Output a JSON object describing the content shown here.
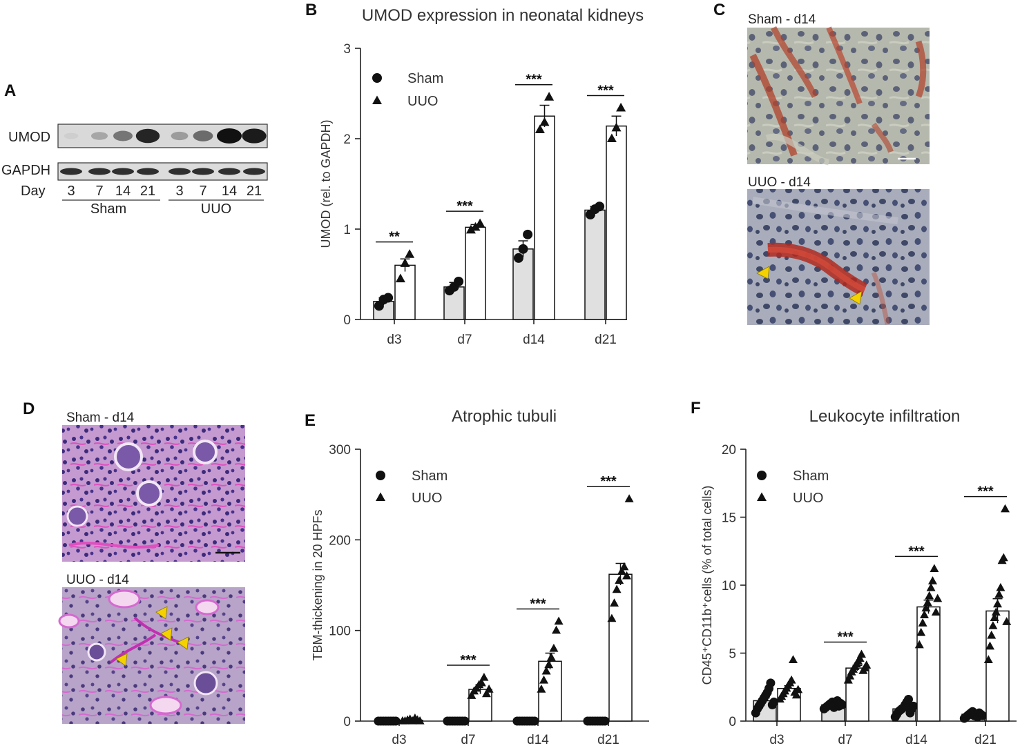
{
  "panels": {
    "A": {
      "letter": "A",
      "rows": [
        "UMOD",
        "GAPDH"
      ],
      "day_label": "Day",
      "days": [
        "3",
        "7",
        "14",
        "21",
        "3",
        "7",
        "14",
        "21"
      ],
      "groups": [
        "Sham",
        "UUO"
      ],
      "umod_band_intensity": [
        0.05,
        0.25,
        0.5,
        0.9,
        0.3,
        0.55,
        1.0,
        0.95
      ],
      "gapdh_band_intensity": [
        0.85,
        0.85,
        0.85,
        0.85,
        0.85,
        0.85,
        0.85,
        0.85
      ]
    },
    "C": {
      "letter": "C",
      "image_labels": [
        "Sham - d14",
        "UUO - d14"
      ]
    },
    "D": {
      "letter": "D",
      "image_labels": [
        "Sham - d14",
        "UUO - d14"
      ]
    }
  },
  "chart_data": [
    {
      "panel": "B",
      "type": "bar",
      "title": "UMOD expression in neonatal kidneys",
      "ylabel": "UMOD (rel. to GAPDH)",
      "xlabel": "",
      "categories": [
        "d3",
        "d7",
        "d14",
        "d21"
      ],
      "ylim": [
        0,
        3
      ],
      "yticks": [
        0,
        1,
        2,
        3
      ],
      "series": [
        {
          "name": "Sham",
          "marker": "circle",
          "color": "#e0e0e0",
          "values": [
            0.2,
            0.36,
            0.78,
            1.21
          ],
          "errors": [
            0.04,
            0.05,
            0.09,
            0.04
          ],
          "points": [
            [
              0.15,
              0.22,
              0.24
            ],
            [
              0.32,
              0.36,
              0.42
            ],
            [
              0.68,
              0.78,
              0.94
            ],
            [
              1.16,
              1.22,
              1.25
            ]
          ]
        },
        {
          "name": "UUO",
          "marker": "triangle",
          "color": "#ffffff",
          "values": [
            0.6,
            1.02,
            2.25,
            2.14
          ],
          "errors": [
            0.07,
            0.03,
            0.12,
            0.11
          ],
          "points": [
            [
              0.45,
              0.62,
              0.72
            ],
            [
              0.99,
              1.02,
              1.06
            ],
            [
              2.1,
              2.18,
              2.46
            ],
            [
              2.0,
              2.12,
              2.34
            ]
          ]
        }
      ],
      "significance": [
        "**",
        "***",
        "***",
        "***"
      ],
      "legend": "top-left"
    },
    {
      "panel": "E",
      "type": "bar",
      "title": "Atrophic tubuli",
      "ylabel": "TBM-thickening in 20 HPFs",
      "xlabel": "",
      "categories": [
        "d3",
        "d7",
        "d14",
        "d21"
      ],
      "ylim": [
        0,
        300
      ],
      "yticks": [
        0,
        100,
        200,
        300
      ],
      "series": [
        {
          "name": "Sham",
          "marker": "circle",
          "color": "#e0e0e0",
          "values": [
            0,
            0,
            0,
            0
          ],
          "errors": [
            0,
            0,
            0,
            0
          ],
          "points": [
            [
              0,
              0,
              0,
              0,
              0,
              0,
              0,
              0
            ],
            [
              0,
              0,
              0,
              0,
              0,
              0,
              0,
              0
            ],
            [
              0,
              0,
              0,
              0,
              0,
              0,
              0,
              0
            ],
            [
              0,
              0,
              0,
              0,
              0,
              0,
              0,
              0
            ]
          ]
        },
        {
          "name": "UUO",
          "marker": "triangle",
          "color": "#ffffff",
          "values": [
            1,
            35,
            66,
            162
          ],
          "errors": [
            0.5,
            5,
            9,
            12
          ],
          "points": [
            [
              0,
              0,
              1,
              2,
              0,
              3,
              1,
              0
            ],
            [
              28,
              33,
              36,
              40,
              42,
              48,
              30,
              35
            ],
            [
              35,
              45,
              55,
              62,
              70,
              80,
              100,
              110
            ],
            [
              113,
              130,
              145,
              155,
              165,
              170,
              160,
              245
            ]
          ]
        }
      ],
      "significance": [
        "",
        "***",
        "***",
        "***"
      ],
      "legend": "top-left"
    },
    {
      "panel": "F",
      "type": "bar",
      "title": "Leukocyte infiltration",
      "ylabel": "CD45⁺CD11b⁺cells (% of total cells)",
      "xlabel": "",
      "categories": [
        "d3",
        "d7",
        "d14",
        "d21"
      ],
      "ylim": [
        0,
        20
      ],
      "yticks": [
        0,
        5,
        10,
        15,
        20
      ],
      "series": [
        {
          "name": "Sham",
          "marker": "circle",
          "color": "#e0e0e0",
          "values": [
            1.5,
            1.2,
            0.9,
            0.5
          ],
          "errors": [
            0.2,
            0.08,
            0.1,
            0.05
          ],
          "points": [
            [
              0.6,
              0.9,
              1.1,
              1.3,
              1.5,
              1.7,
              1.9,
              2.1,
              2.4,
              2.8,
              1.2,
              1.4
            ],
            [
              0.9,
              1.0,
              1.1,
              1.2,
              1.3,
              1.4,
              1.0,
              1.2,
              1.5,
              1.1,
              1.3,
              1.2
            ],
            [
              0.3,
              0.5,
              0.7,
              0.8,
              0.9,
              1.0,
              1.2,
              1.4,
              1.6,
              0.6,
              0.9,
              1.1
            ],
            [
              0.2,
              0.3,
              0.4,
              0.5,
              0.6,
              0.7,
              0.4,
              0.5,
              0.3,
              0.6,
              0.5,
              0.4
            ]
          ]
        },
        {
          "name": "UUO",
          "marker": "triangle",
          "color": "#ffffff",
          "values": [
            2.4,
            3.9,
            8.4,
            8.1
          ],
          "errors": [
            0.2,
            0.2,
            0.5,
            0.9
          ],
          "points": [
            [
              1.6,
              1.8,
              2.0,
              2.2,
              2.4,
              2.6,
              2.8,
              3.0,
              4.5,
              2.1,
              1.9,
              2.3
            ],
            [
              3.0,
              3.3,
              3.6,
              3.8,
              4.0,
              4.2,
              4.4,
              4.6,
              4.9,
              3.7,
              3.9,
              4.1
            ],
            [
              5.6,
              6.5,
              7.2,
              7.8,
              8.3,
              8.7,
              9.2,
              9.8,
              10.3,
              11.2,
              8.0,
              9.0
            ],
            [
              4.5,
              5.5,
              6.3,
              7.0,
              7.6,
              8.0,
              8.6,
              9.3,
              9.8,
              11.8,
              12.0,
              15.6,
              7.3
            ]
          ]
        }
      ],
      "significance": [
        "",
        "***",
        "***",
        "***"
      ],
      "legend": "top-left"
    }
  ]
}
